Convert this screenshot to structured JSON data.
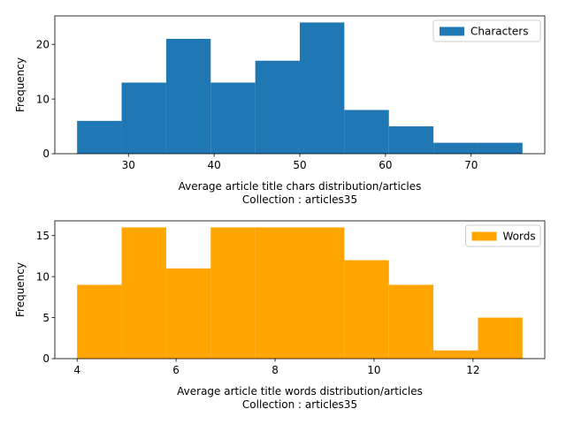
{
  "chart_data": [
    {
      "type": "bar",
      "histogram": true,
      "bin_edges": [
        24,
        29.2,
        34.4,
        39.6,
        44.8,
        50,
        55.2,
        60.4,
        65.6,
        70.8,
        76
      ],
      "values": [
        6,
        13,
        21,
        13,
        17,
        24,
        8,
        5,
        2,
        2
      ],
      "color": "#1f77b4",
      "series": [
        {
          "name": "Characters",
          "values": [
            6,
            13,
            21,
            13,
            17,
            24,
            8,
            5,
            2,
            2
          ]
        }
      ],
      "xlim": [
        21.4,
        78.6
      ],
      "ylim": [
        0,
        25.2
      ],
      "xticks": [
        30,
        40,
        50,
        60,
        70
      ],
      "yticks": [
        0,
        10,
        20
      ],
      "title": "",
      "xlabel": "Average article title chars distribution/articles",
      "xlabel2": "Collection : articles35",
      "ylabel": "Frequency",
      "legend": {
        "label": "Characters",
        "placement": "upper right"
      },
      "grid": false
    },
    {
      "type": "bar",
      "histogram": true,
      "bin_edges": [
        4,
        4.9,
        5.8,
        6.7,
        7.6,
        8.5,
        9.4,
        10.3,
        11.2,
        12.1,
        13
      ],
      "values": [
        9,
        16,
        11,
        16,
        16,
        16,
        12,
        9,
        1,
        5
      ],
      "color": "#ffa500",
      "series": [
        {
          "name": "Words",
          "values": [
            9,
            16,
            11,
            16,
            16,
            16,
            12,
            9,
            1,
            5
          ]
        }
      ],
      "xlim": [
        3.55,
        13.45
      ],
      "ylim": [
        0,
        16.8
      ],
      "xticks": [
        4,
        6,
        8,
        10,
        12
      ],
      "yticks": [
        0,
        5,
        10,
        15
      ],
      "title": "",
      "xlabel": "Average article title words distribution/articles",
      "xlabel2": "Collection : articles35",
      "ylabel": "Frequency",
      "legend": {
        "label": "Words",
        "placement": "upper right"
      },
      "grid": false
    }
  ]
}
